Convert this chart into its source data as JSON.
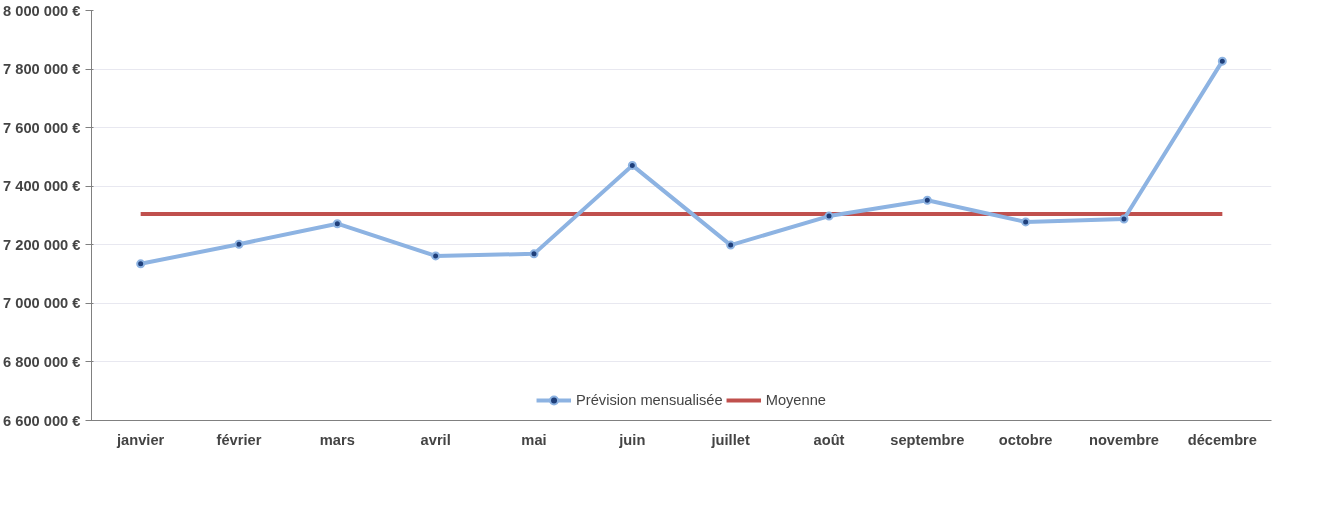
{
  "chart_data": {
    "type": "line",
    "categories": [
      "janvier",
      "février",
      "mars",
      "avril",
      "mai",
      "juin",
      "juillet",
      "août",
      "septembre",
      "octobre",
      "novembre",
      "décembre"
    ],
    "series": [
      {
        "name": "Prévision mensualisée",
        "color": "#8db3e2",
        "marker": "circle",
        "values": [
          7135000,
          7202000,
          7272000,
          7162000,
          7169000,
          7471000,
          7199000,
          7298000,
          7352000,
          7278000,
          7288000,
          7827000
        ]
      },
      {
        "name": "Moyenne",
        "color": "#c0504d",
        "marker": "none",
        "values": [
          7305000,
          7305000,
          7305000,
          7305000,
          7305000,
          7305000,
          7305000,
          7305000,
          7305000,
          7305000,
          7305000,
          7305000
        ]
      }
    ],
    "ylim": [
      6600000,
      8000000
    ],
    "yticks": [
      {
        "value": 6600000,
        "label": "6 600 000 €"
      },
      {
        "value": 6800000,
        "label": "6 800 000 €"
      },
      {
        "value": 7000000,
        "label": "7 000 000 €"
      },
      {
        "value": 7200000,
        "label": "7 200 000 €"
      },
      {
        "value": 7400000,
        "label": "7 400 000 €"
      },
      {
        "value": 7600000,
        "label": "7 600 000 €"
      },
      {
        "value": 7800000,
        "label": "7 800 000 €"
      },
      {
        "value": 8000000,
        "label": "8 000 000 €"
      }
    ],
    "grid": "y",
    "legend": "bottom",
    "line_style": "solid"
  }
}
